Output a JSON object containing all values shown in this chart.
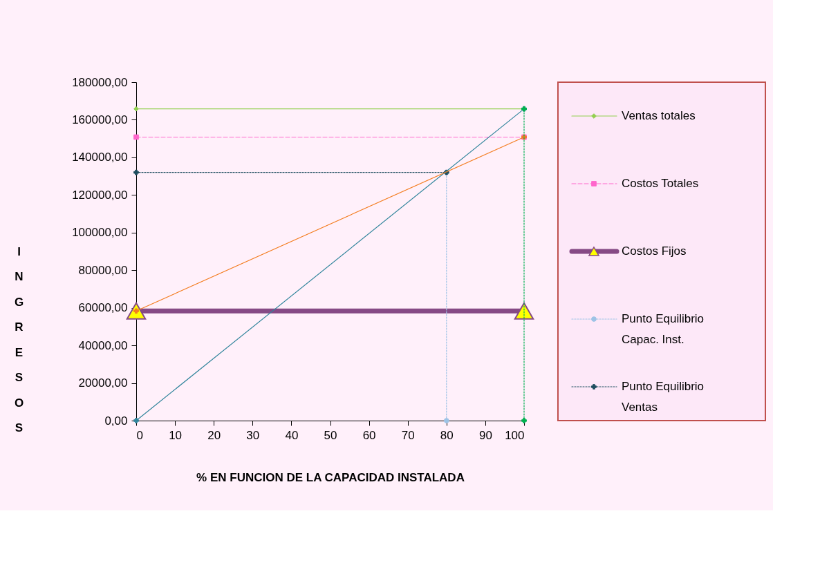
{
  "chart_data": {
    "type": "line",
    "xlabel": "% EN FUNCION DE LA CAPACIDAD INSTALADA",
    "ylabel": "INGRESOS",
    "xlim": [
      0,
      100
    ],
    "xticks": [
      0,
      10,
      20,
      30,
      40,
      50,
      60,
      70,
      80,
      90,
      100
    ],
    "ylim": [
      0,
      180000
    ],
    "yticks": [
      {
        "value": 0,
        "label": "0,00"
      },
      {
        "value": 20000,
        "label": "20000,00"
      },
      {
        "value": 40000,
        "label": "40000,00"
      },
      {
        "value": 60000,
        "label": "60000,00"
      },
      {
        "value": 80000,
        "label": "80000,00"
      },
      {
        "value": 100000,
        "label": "100000,00"
      },
      {
        "value": 120000,
        "label": "120000,00"
      },
      {
        "value": 140000,
        "label": "140000,00"
      },
      {
        "value": 160000,
        "label": "160000,00"
      },
      {
        "value": 180000,
        "label": "180000,00"
      }
    ],
    "grid": false,
    "legend": "right",
    "series": [
      {
        "name": "Ventas totales",
        "color": "#92d050",
        "x": [
          0,
          100
        ],
        "values": [
          165800,
          165800
        ],
        "marker": "diamond",
        "line_style": "solid"
      },
      {
        "name": "Costos Totales",
        "color": "#ff66cc",
        "x": [
          0,
          100
        ],
        "values": [
          150800,
          150800
        ],
        "marker": "square",
        "line_style": "dashed"
      },
      {
        "name": "Costos Fijos",
        "color": "#864a85",
        "x": [
          0,
          100
        ],
        "values": [
          58300,
          58300
        ],
        "marker": "triangle",
        "line_style": "solid"
      },
      {
        "name": "Punto Equilibrio Capac. Inst.",
        "color": "#9dc3e6",
        "x": [
          80,
          80
        ],
        "values": [
          0,
          132000
        ],
        "marker": "circle",
        "line_style": "dotted"
      },
      {
        "name": "Punto Equilibrio Ventas",
        "color": "#1f4e5f",
        "x": [
          0,
          80
        ],
        "values": [
          132000,
          132000
        ],
        "marker": "cross",
        "line_style": "dotted"
      },
      {
        "color": "#31859c",
        "x": [
          0,
          100
        ],
        "values": [
          0,
          165800
        ],
        "marker": "cross",
        "line_style": "solid"
      },
      {
        "color": "#f47d20",
        "x": [
          0,
          100
        ],
        "values": [
          58300,
          150800
        ],
        "marker": "cross",
        "line_style": "solid"
      },
      {
        "color": "#00b050",
        "x": [
          100,
          100
        ],
        "values": [
          0,
          165800
        ],
        "marker": "cross",
        "line_style": "dotted"
      }
    ]
  }
}
